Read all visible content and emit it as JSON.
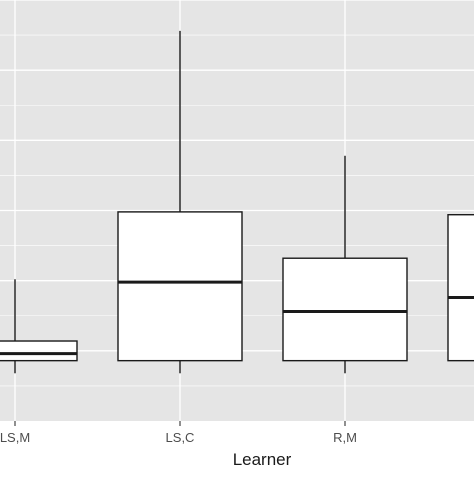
{
  "chart_data": {
    "type": "box",
    "title": "",
    "xlabel": "Learner",
    "ylabel": "",
    "grid": true,
    "legend": "none",
    "categories": [
      "LS,M",
      "LS,C",
      "R,M",
      ""
    ],
    "boxes": [
      {
        "label": "LS,M",
        "whisker_low": 0.34,
        "q1": 0.43,
        "median": 0.48,
        "q3": 0.57,
        "whisker_high": 1.01
      },
      {
        "label": "LS,C",
        "whisker_low": 0.34,
        "q1": 0.43,
        "median": 0.99,
        "q3": 1.49,
        "whisker_high": 2.78
      },
      {
        "label": "R,M",
        "whisker_low": 0.34,
        "q1": 0.43,
        "median": 0.78,
        "q3": 1.16,
        "whisker_high": 1.89
      },
      {
        "label": "",
        "whisker_low": null,
        "q1": 0.43,
        "median": 0.88,
        "q3": 1.47,
        "whisker_high": null
      }
    ],
    "colors": {
      "panel": "#e5e5e5",
      "grid_major": "#ffffff",
      "box_fill": "#ffffff",
      "stroke": "#1a1a1a",
      "axis_text": "#4d4d4d",
      "axis_title": "#1a1a1a"
    }
  }
}
